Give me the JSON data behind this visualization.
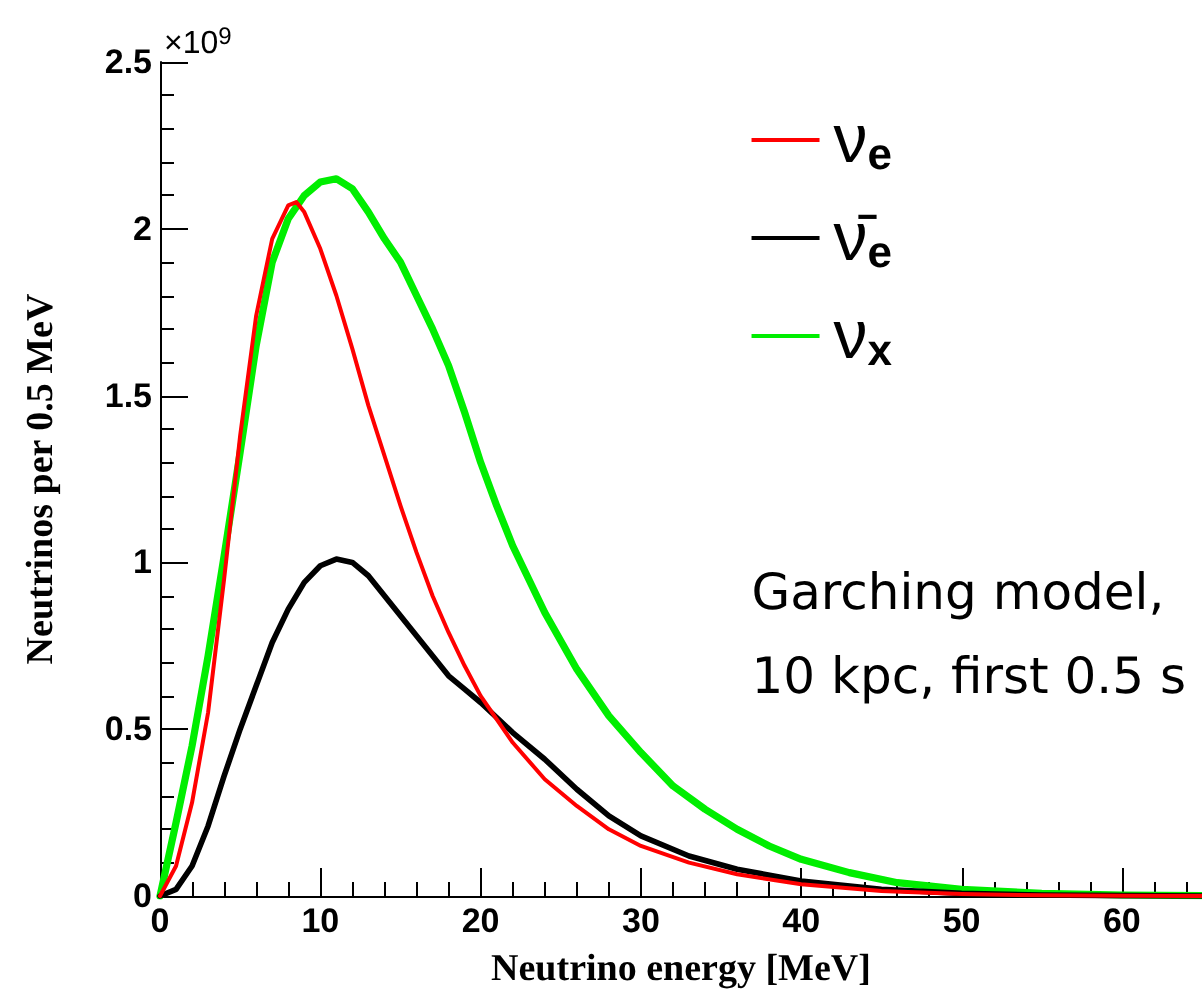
{
  "chart_data": {
    "type": "line",
    "xlabel": "Neutrino energy [MeV]",
    "ylabel": "Neutrinos per 0.5 MeV",
    "annotations": [
      "×10$^{9}$",
      "Garching model,\n10 kpc, first 0.5 s"
    ],
    "xlim": [
      0,
      65
    ],
    "xticks": [
      0,
      10,
      20,
      30,
      40,
      50,
      60
    ],
    "ylim": [
      0,
      2.5
    ],
    "yticks": [
      0,
      0.5,
      1,
      1.5,
      2,
      2.5
    ],
    "grid": false,
    "legend": "top right",
    "marker": "none",
    "line_style": "solid",
    "series": [
      {
        "name": "ν$_{e}$",
        "color": "#ff0000",
        "x": [
          0,
          1,
          2,
          3,
          4,
          5,
          6,
          7,
          8,
          8.5,
          9,
          10,
          11,
          12,
          13,
          14,
          15,
          16,
          17,
          18,
          19,
          20,
          22,
          24,
          26,
          28,
          30,
          33,
          36,
          40,
          45,
          50,
          55,
          60,
          65
        ],
        "values": [
          0,
          0.09,
          0.28,
          0.55,
          0.95,
          1.38,
          1.74,
          1.97,
          2.07,
          2.08,
          2.05,
          1.94,
          1.8,
          1.64,
          1.47,
          1.32,
          1.17,
          1.03,
          0.9,
          0.79,
          0.69,
          0.6,
          0.46,
          0.35,
          0.27,
          0.2,
          0.15,
          0.1,
          0.065,
          0.035,
          0.015,
          0.006,
          0.002,
          0.001,
          0
        ]
      },
      {
        "name": "ν̄$_{e}$",
        "color": "#000000",
        "x": [
          0,
          1,
          2,
          3,
          4,
          5,
          6,
          7,
          8,
          9,
          10,
          11,
          12,
          13,
          14,
          15,
          16,
          17,
          18,
          19,
          20,
          22,
          24,
          26,
          28,
          30,
          33,
          36,
          40,
          45,
          50,
          55,
          60,
          65
        ],
        "values": [
          0,
          0.02,
          0.09,
          0.21,
          0.36,
          0.5,
          0.63,
          0.76,
          0.86,
          0.94,
          0.99,
          1.01,
          1.0,
          0.96,
          0.9,
          0.84,
          0.78,
          0.72,
          0.66,
          0.62,
          0.58,
          0.49,
          0.41,
          0.32,
          0.24,
          0.18,
          0.12,
          0.08,
          0.045,
          0.02,
          0.008,
          0.003,
          0.001,
          0
        ]
      },
      {
        "name": "ν$_{x}$",
        "color": "#00ee00",
        "x": [
          0,
          1,
          2,
          3,
          4,
          5,
          6,
          7,
          8,
          9,
          10,
          11,
          12,
          13,
          14,
          15,
          16,
          17,
          18,
          19,
          20,
          21,
          22,
          24,
          26,
          28,
          30,
          32,
          34,
          36,
          38,
          40,
          43,
          46,
          50,
          55,
          60,
          65
        ],
        "values": [
          0,
          0.22,
          0.45,
          0.72,
          1.02,
          1.33,
          1.65,
          1.9,
          2.03,
          2.1,
          2.14,
          2.15,
          2.12,
          2.05,
          1.97,
          1.9,
          1.8,
          1.7,
          1.59,
          1.45,
          1.3,
          1.17,
          1.05,
          0.85,
          0.68,
          0.54,
          0.43,
          0.33,
          0.26,
          0.2,
          0.15,
          0.11,
          0.07,
          0.04,
          0.02,
          0.008,
          0.003,
          0.001
        ]
      }
    ]
  }
}
